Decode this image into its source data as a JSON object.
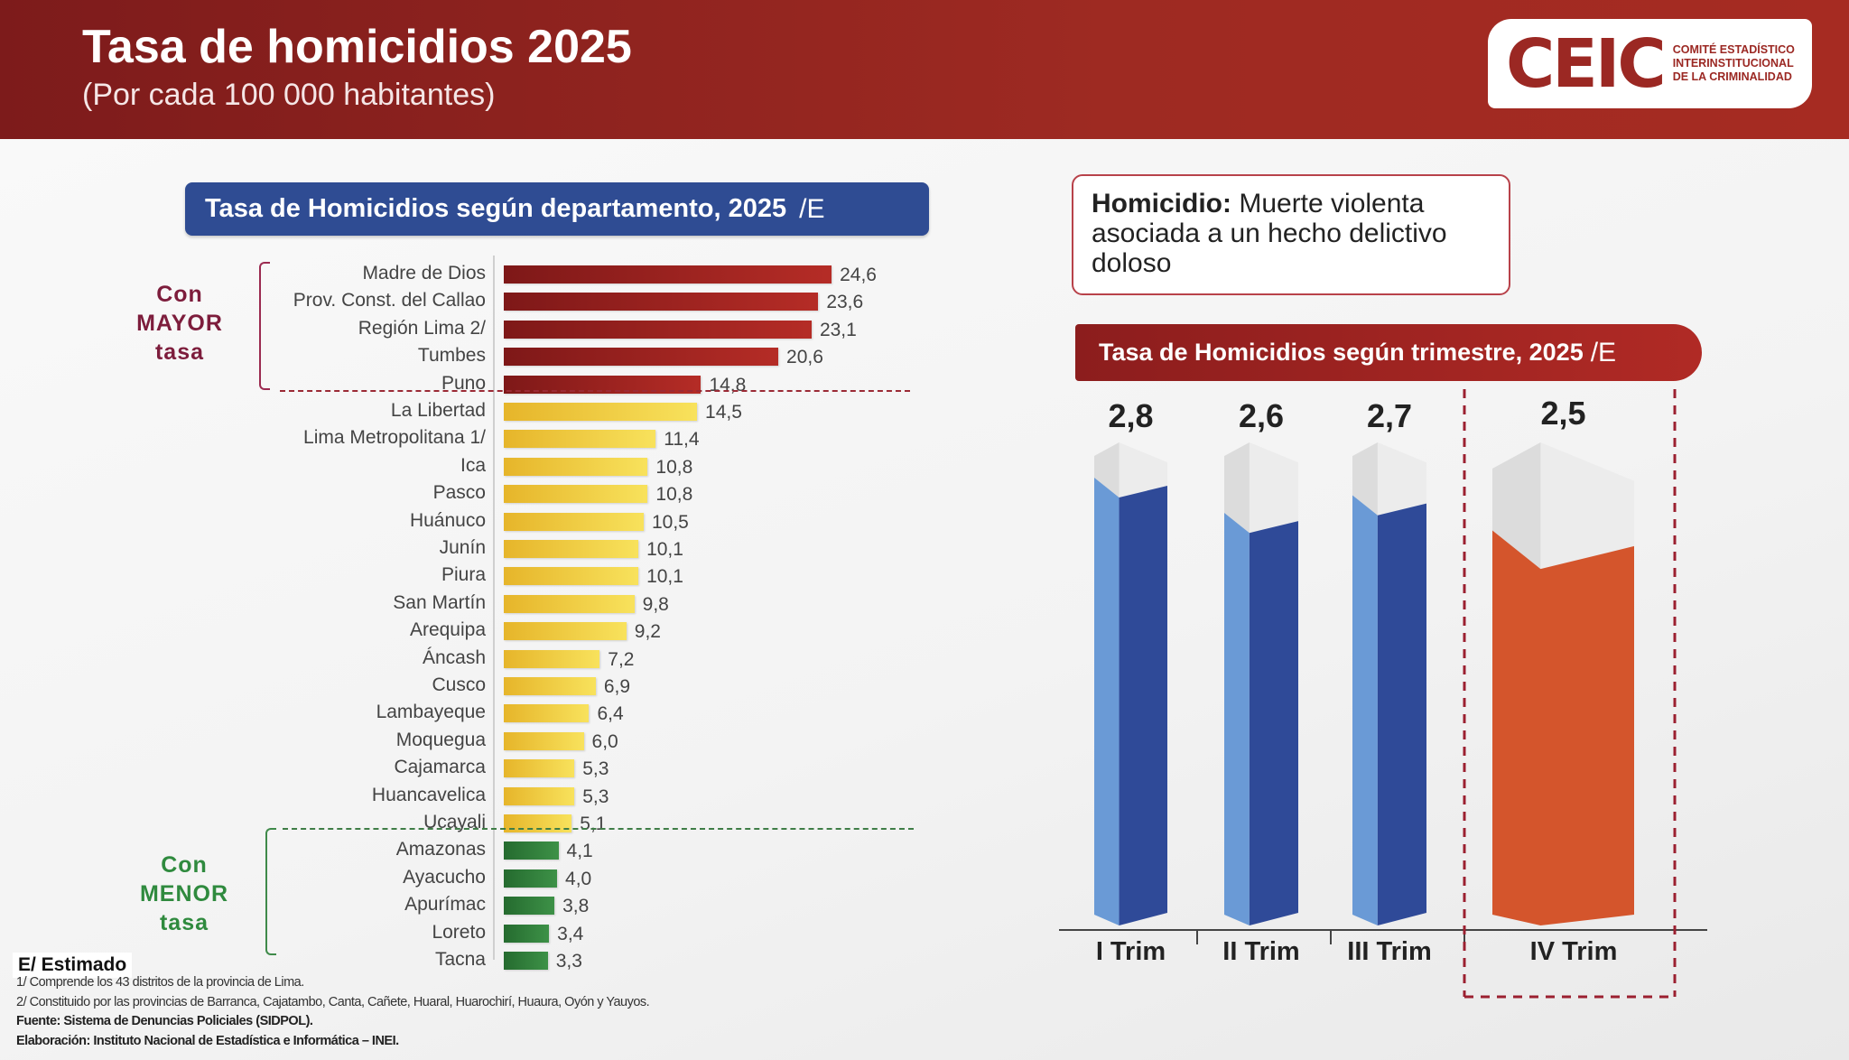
{
  "header": {
    "title": "Tasa de homicidios 2025",
    "subtitle": "(Por cada 100 000 habitantes)"
  },
  "logo": {
    "mark": "CEIC",
    "lines": [
      "COMITÉ ESTADÍSTICO",
      "INTERINSTITUCIONAL",
      "DE LA CRIMINALIDAD"
    ]
  },
  "definition": {
    "term": "Homicidio:",
    "text": " Muerte violenta asociada a un hecho delictivo doloso"
  },
  "colors": {
    "high": "#a52a24",
    "mid": "#f0cc3c",
    "low": "#2f7d3a",
    "quarter": "#2f4a98",
    "quarter_light": "#6a9ad6",
    "estimate": "#d4552c",
    "header": "#9e2a22",
    "dept_title": "#2f4c93"
  },
  "chart_data": [
    {
      "type": "bar",
      "orientation": "horizontal",
      "title": "Tasa de Homicidios según departamento, 2025",
      "title_suffix": "/E",
      "groups": {
        "high": "Con MAYOR tasa",
        "low": "Con MENOR tasa"
      },
      "categories": [
        "Madre de Dios",
        "Prov. Const. del Callao",
        "Región Lima 2/",
        "Tumbes",
        "Puno",
        "La Libertad",
        "Lima Metropolitana 1/",
        "Ica",
        "Pasco",
        "Huánuco",
        "Junín",
        "Piura",
        "San Martín",
        "Arequipa",
        "Áncash",
        "Cusco",
        "Lambayeque",
        "Moquegua",
        "Cajamarca",
        "Huancavelica",
        "Ucayali",
        "Amazonas",
        "Ayacucho",
        "Apurímac",
        "Loreto",
        "Tacna"
      ],
      "values": [
        24.6,
        23.6,
        23.1,
        20.6,
        14.8,
        14.5,
        11.4,
        10.8,
        10.8,
        10.5,
        10.1,
        10.1,
        9.8,
        9.2,
        7.2,
        6.9,
        6.4,
        6.0,
        5.3,
        5.3,
        5.1,
        4.1,
        4.0,
        3.8,
        3.4,
        3.3
      ],
      "labels": [
        "24,6",
        "23,6",
        "23,1",
        "20,6",
        "14,8",
        "14,5",
        "11,4",
        "10,8",
        "10,8",
        "10,5",
        "10,1",
        "10,1",
        "9,8",
        "9,2",
        "7,2",
        "6,9",
        "6,4",
        "6,0",
        "5,3",
        "5,3",
        "5,1",
        "4,1",
        "4,0",
        "3,8",
        "3,4",
        "3,3"
      ],
      "group_of": [
        "high",
        "high",
        "high",
        "high",
        "high",
        "mid",
        "mid",
        "mid",
        "mid",
        "mid",
        "mid",
        "mid",
        "mid",
        "mid",
        "mid",
        "mid",
        "mid",
        "mid",
        "mid",
        "mid",
        "mid",
        "low",
        "low",
        "low",
        "low",
        "low"
      ]
    },
    {
      "type": "bar",
      "orientation": "vertical",
      "title": "Tasa de Homicidios según trimestre, 2025",
      "title_suffix": "/E",
      "categories": [
        "I Trim",
        "II Trim",
        "III Trim",
        "IV Trim"
      ],
      "values": [
        2.8,
        2.6,
        2.7,
        2.5
      ],
      "labels": [
        "2,8",
        "2,6",
        "2,7",
        "2,5"
      ],
      "estimated": [
        false,
        false,
        false,
        true
      ]
    }
  ],
  "footer": {
    "estimate": "E/ Estimado",
    "notes": [
      "1/ Comprende los 43 distritos de la provincia de Lima.",
      "2/ Constituido por las provincias de Barranca, Cajatambo, Canta, Cañete, Huaral, Huarochirí, Huaura, Oyón y Yauyos."
    ],
    "source": "Fuente: Sistema de Denuncias Policiales (SIDPOL).",
    "elaboration": "Elaboración: Instituto Nacional de Estadística e Informática – INEI."
  }
}
